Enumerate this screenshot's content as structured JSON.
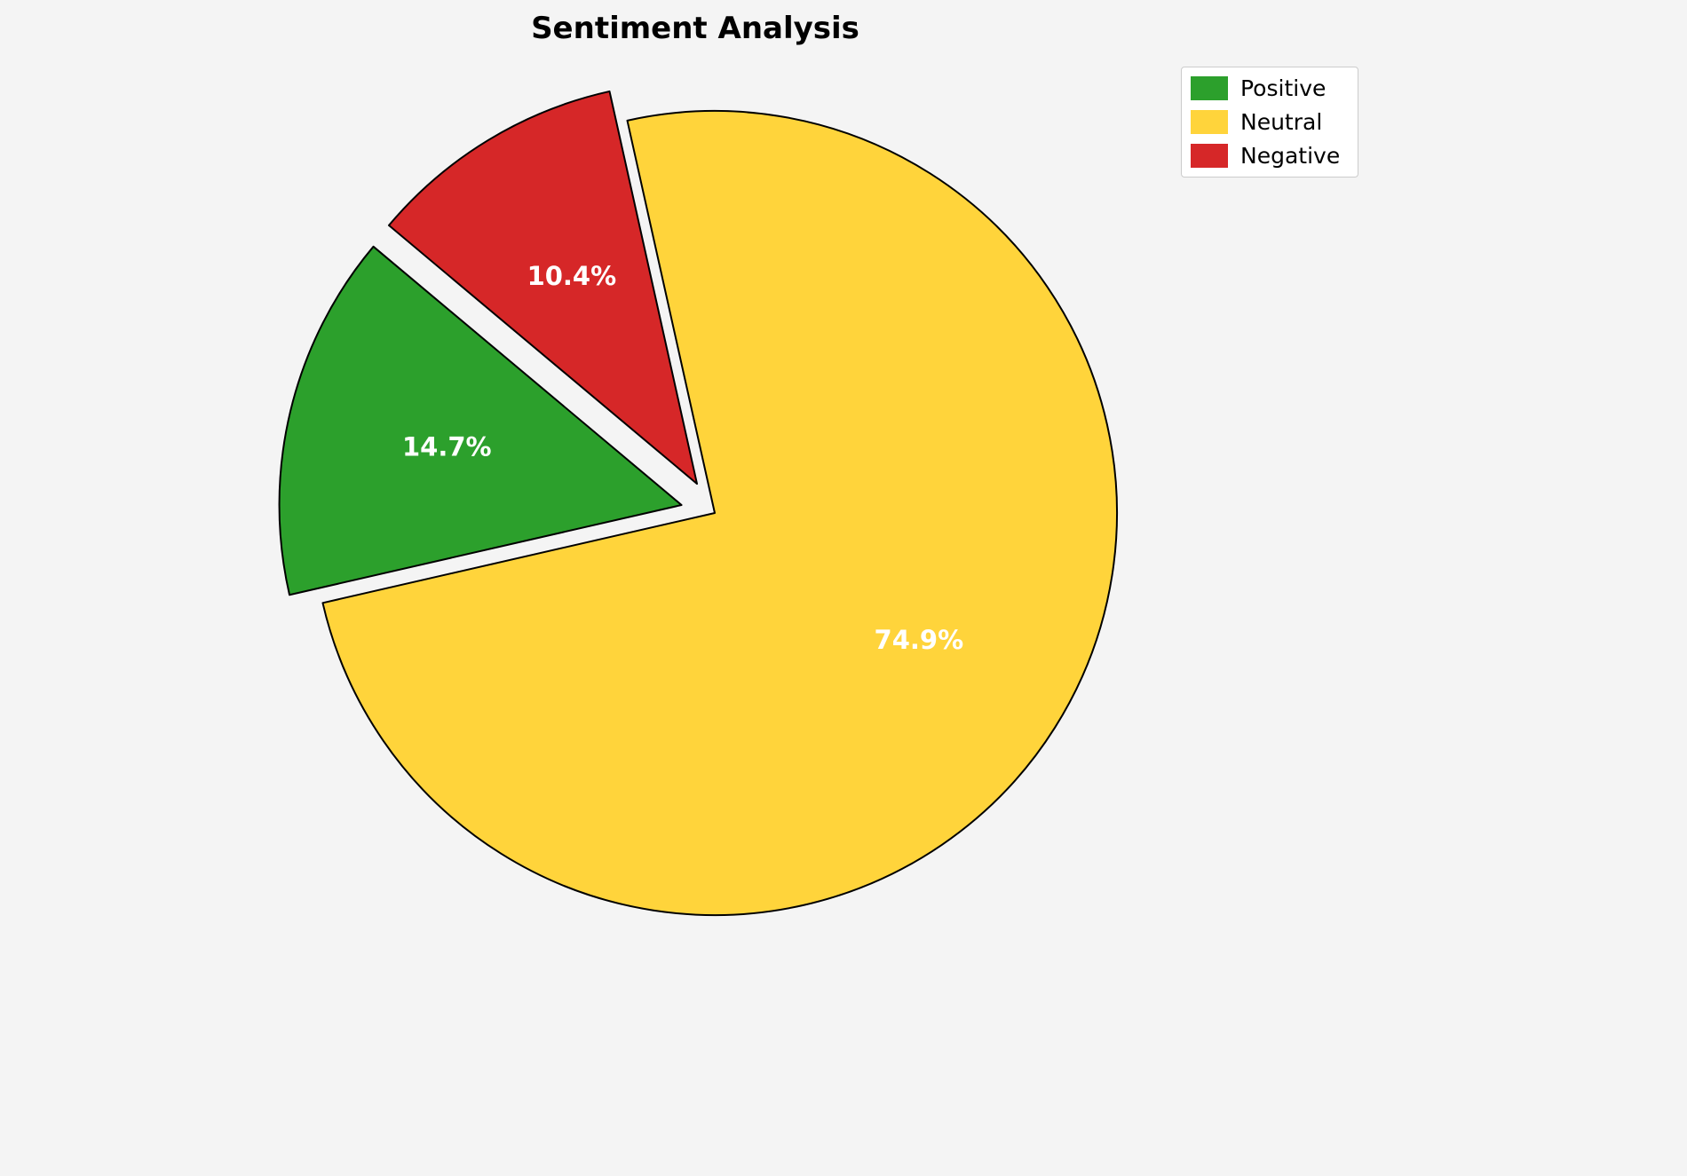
{
  "page": {
    "background_color": "#f4f4f4"
  },
  "chart_data": {
    "type": "pie",
    "title": "Sentiment Analysis",
    "labels": [
      "Positive",
      "Neutral",
      "Negative"
    ],
    "values": [
      14.7,
      74.9,
      10.4
    ],
    "percent_labels": [
      "14.7%",
      "74.9%",
      "10.4%"
    ],
    "colors": [
      "#2ca02c",
      "#ffd43b",
      "#d62728"
    ],
    "explode": [
      0.085,
      0,
      0.085
    ],
    "startangle": 140,
    "direction": "counterclockwise",
    "edge_color": "#000000",
    "edge_width": 2,
    "label_color": "#ffffff",
    "pct_distance": 0.6,
    "legend": {
      "position": "upper right",
      "items": [
        "Positive",
        "Neutral",
        "Negative"
      ]
    }
  }
}
